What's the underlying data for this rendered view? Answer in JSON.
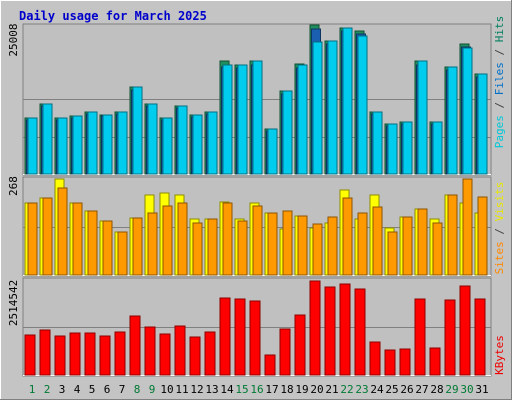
{
  "chart_data": {
    "type": "bar",
    "title": "Daily usage for March 2025",
    "categories": [
      "1",
      "2",
      "3",
      "4",
      "5",
      "6",
      "7",
      "8",
      "9",
      "10",
      "11",
      "12",
      "13",
      "14",
      "15",
      "16",
      "17",
      "18",
      "19",
      "20",
      "21",
      "22",
      "23",
      "24",
      "25",
      "26",
      "27",
      "28",
      "29",
      "30",
      "31"
    ],
    "weekend_days": [
      "1",
      "2",
      "8",
      "9",
      "15",
      "16",
      "22",
      "23",
      "29",
      "30"
    ],
    "panels": [
      {
        "id": "hits",
        "max_label": "25008",
        "ylim": [
          0,
          25008
        ],
        "side_labels": [
          {
            "text": "Pages",
            "color": "#00c8d8"
          },
          {
            "text": " / ",
            "color": "#444444"
          },
          {
            "text": "Files",
            "color": "#0070c8"
          },
          {
            "text": " / ",
            "color": "#444444"
          },
          {
            "text": "Hits",
            "color": "#008060"
          }
        ],
        "series": [
          {
            "name": "Hits",
            "color": "#1f8f5f",
            "values": [
              9400,
              11700,
              9300,
              9700,
              10300,
              9900,
              10400,
              14500,
              11700,
              9300,
              11400,
              9800,
              10300,
              18800,
              18200,
              18800,
              7500,
              13800,
              18300,
              24800,
              22200,
              24300,
              23800,
              10400,
              8300,
              8600,
              18800,
              8700,
              17800,
              21700,
              16600
            ]
          },
          {
            "name": "Files",
            "color": "#1a5fb0",
            "values": [
              9000,
              11300,
              9000,
              9400,
              10000,
              9600,
              10000,
              14000,
              11300,
              9000,
              11000,
              9500,
              10000,
              17900,
              17600,
              18100,
              7200,
              13300,
              17700,
              24200,
              21700,
              23800,
              23300,
              10000,
              8000,
              8300,
              18200,
              8400,
              17300,
              21100,
              16100
            ]
          },
          {
            "name": "Pages",
            "color": "#00ccee",
            "values": [
              9400,
              11700,
              9300,
              9700,
              10300,
              9900,
              10400,
              14500,
              11700,
              9300,
              11400,
              9800,
              10300,
              18200,
              18200,
              18800,
              7500,
              13800,
              18200,
              22000,
              22200,
              24300,
              23000,
              10400,
              8300,
              8600,
              18800,
              8700,
              17800,
              21000,
              16600
            ]
          }
        ]
      },
      {
        "id": "visits",
        "max_label": "268",
        "ylim": [
          0,
          268
        ],
        "side_labels": [
          {
            "text": "Sites",
            "color": "#ff8800"
          },
          {
            "text": " / ",
            "color": "#444444"
          },
          {
            "text": "Visits",
            "color": "#e8e800"
          }
        ],
        "series": [
          {
            "name": "Visits",
            "color": "#ffff00",
            "values": [
              202,
              214,
              267,
              200,
              180,
              151,
              119,
              160,
              223,
              228,
              224,
              156,
              156,
              204,
              155,
              202,
              172,
              129,
              166,
              130,
              146,
              236,
              156,
              222,
              130,
              161,
              184,
              157,
              224,
              200,
              172
            ]
          },
          {
            "name": "Sites",
            "color": "#ff9900",
            "values": [
              202,
              214,
              243,
              200,
              180,
              151,
              119,
              160,
              174,
              194,
              200,
              146,
              156,
              201,
              152,
              192,
              172,
              180,
              166,
              143,
              163,
              215,
              174,
              190,
              120,
              161,
              184,
              146,
              224,
              268,
              219
            ]
          }
        ]
      },
      {
        "id": "kbytes",
        "max_label": "2514542",
        "ylim": [
          0,
          2514542
        ],
        "side_labels": [
          {
            "text": "KBytes",
            "color": "#ee0000"
          }
        ],
        "series": [
          {
            "name": "KBytes",
            "color": "#ff0000",
            "values": [
              1055000,
              1179000,
              1012000,
              1104000,
              1104000,
              1012000,
              1130000,
              1545000,
              1255000,
              1063000,
              1288000,
              1004000,
              1122000,
              2014000,
              1989000,
              1939000,
              520000,
              1214000,
              1577000,
              2451000,
              2308000,
              2384000,
              2250000,
              853000,
              643000,
              668000,
              1989000,
              710000,
              1955000,
              2325000,
              1989000
            ]
          }
        ]
      }
    ],
    "colors": {
      "frame_bg": "#c4c4c4",
      "plot_bg": "#c0c0c0",
      "gridline": "#808080",
      "title": "#0000cc",
      "day_weekday": "#000000",
      "day_weekend": "#007a33"
    }
  }
}
